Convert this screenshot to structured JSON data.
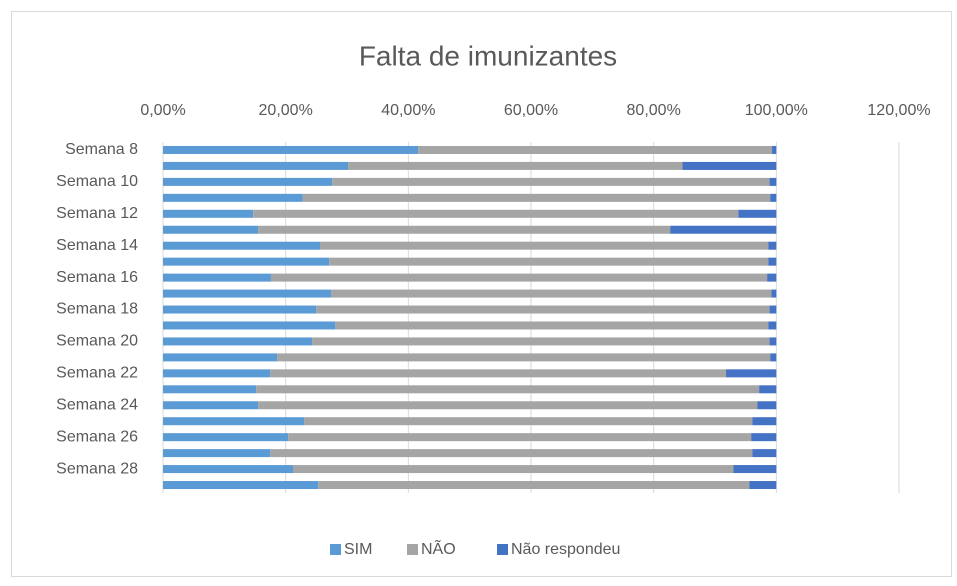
{
  "chart_data": {
    "type": "stacked_barh",
    "title": "Falta de imunizantes",
    "categories": [
      "Semana 8",
      null,
      "Semana 10",
      null,
      "Semana 12",
      null,
      "Semana 14",
      null,
      "Semana 16",
      null,
      "Semana 18",
      null,
      "Semana 20",
      null,
      "Semana 22",
      null,
      "Semana 24",
      null,
      "Semana 26",
      null,
      "Semana 28",
      null
    ],
    "series": [
      {
        "name": "SIM",
        "color": "#5b9bd5",
        "values": [
          41.6,
          30.2,
          27.6,
          22.8,
          14.7,
          15.5,
          25.6,
          27.1,
          17.6,
          27.4,
          25.0,
          28.1,
          24.3,
          18.6,
          17.5,
          15.2,
          15.5,
          23.0,
          20.4,
          17.5,
          21.2,
          25.3
        ]
      },
      {
        "name": "NÃO",
        "color": "#a5a5a5",
        "values": [
          57.7,
          54.5,
          71.3,
          76.2,
          79.1,
          67.2,
          73.1,
          71.6,
          80.9,
          71.8,
          73.9,
          70.6,
          74.6,
          80.4,
          74.3,
          82.0,
          81.4,
          73.1,
          75.5,
          78.6,
          71.8,
          70.3
        ]
      },
      {
        "name": "Não respondeu",
        "color": "#4472c4",
        "values": [
          0.7,
          15.3,
          1.1,
          1.0,
          6.2,
          17.3,
          1.3,
          1.3,
          1.5,
          0.8,
          1.1,
          1.3,
          1.1,
          1.0,
          8.2,
          2.8,
          3.1,
          3.9,
          4.1,
          3.9,
          7.0,
          4.4
        ]
      }
    ],
    "xlim": [
      0,
      120
    ],
    "xticks": [
      {
        "value": 0,
        "label": "0,00%"
      },
      {
        "value": 20,
        "label": "20,00%"
      },
      {
        "value": 40,
        "label": "40,00%"
      },
      {
        "value": 60,
        "label": "60,00%"
      },
      {
        "value": 80,
        "label": "80,00%"
      },
      {
        "value": 100,
        "label": "100,00%"
      },
      {
        "value": 120,
        "label": "120,00%"
      }
    ],
    "grid": true,
    "legend": "bottom"
  }
}
